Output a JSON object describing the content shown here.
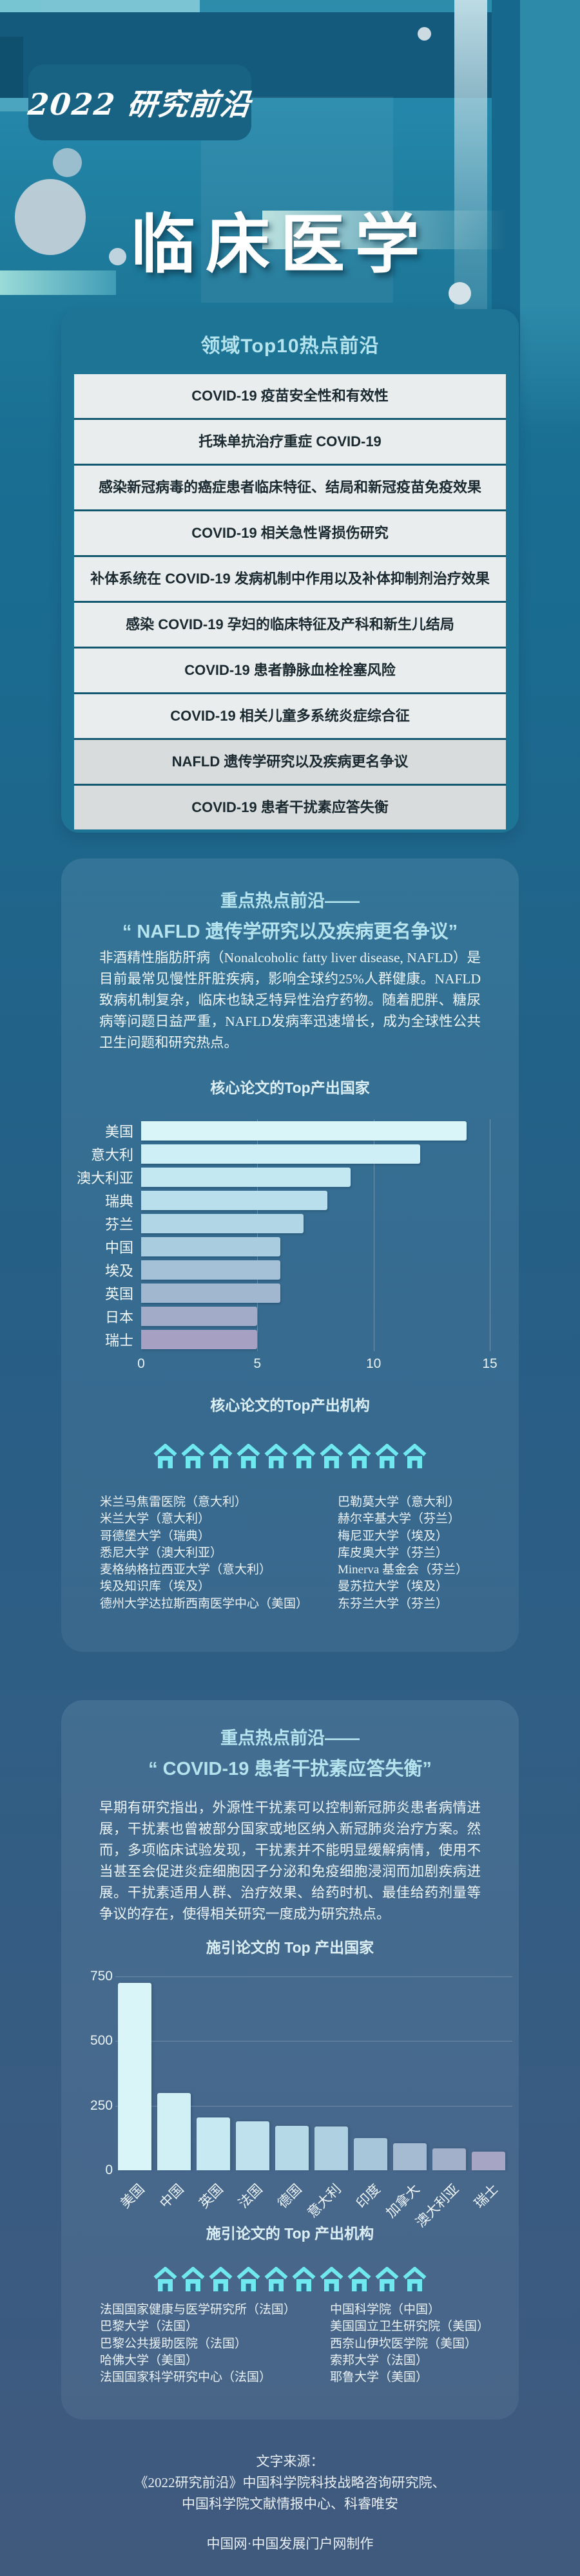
{
  "header": {
    "badge": "2022 研究前沿",
    "title": "临床医学"
  },
  "top10": {
    "title": "领域Top10热点前沿",
    "highlight_from": 8,
    "items": [
      "COVID-19 疫苗安全性和有效性",
      "托珠单抗治疗重症 COVID-19",
      "感染新冠病毒的癌症患者临床特征、结局和新冠疫苗免疫效果",
      "COVID-19 相关急性肾损伤研究",
      "补体系统在 COVID-19 发病机制中作用以及补体抑制剂治疗效果",
      "感染 COVID-19 孕妇的临床特征及产科和新生儿结局",
      "COVID-19 患者静脉血栓栓塞风险",
      "COVID-19 相关儿童多系统炎症综合征",
      "NAFLD 遗传学研究以及疾病更名争议",
      "COVID-19 患者干扰素应答失衡"
    ]
  },
  "sections": [
    {
      "heading_prefix": "重点热点前沿——",
      "heading": "“ NAFLD 遗传学研究以及疾病更名争议”",
      "paragraph": "非酒精性脂肪肝病（Nonalcoholic fatty liver disease, NAFLD）是目前最常见慢性肝脏疾病，影响全球约25%人群健康。NAFLD致病机制复杂，临床也缺乏特异性治疗药物。随着肥胖、糖尿病等问题日益严重，NAFLD发病率迅速增长，成为全球性公共卫生问题和研究热点。",
      "chart_title": "核心论文的Top产出国家",
      "inst_title": "核心论文的Top产出机构",
      "house_count": 10,
      "institutions_left": [
        "米兰马焦雷医院（意大利）",
        "米兰大学（意大利）",
        "哥德堡大学（瑞典）",
        "悉尼大学（澳大利亚）",
        "麦格纳格拉西亚大学（意大利）",
        "埃及知识库（埃及）",
        "德州大学达拉斯西南医学中心（美国）"
      ],
      "institutions_right": [
        "巴勒莫大学（意大利）",
        "赫尔辛基大学（芬兰）",
        "梅尼亚大学（埃及）",
        "库皮奥大学（芬兰）",
        "Minerva 基金会（芬兰）",
        "曼苏拉大学（埃及）",
        "东芬兰大学（芬兰）"
      ]
    },
    {
      "heading_prefix": "重点热点前沿——",
      "heading": "“ COVID-19 患者干扰素应答失衡”",
      "paragraph": "早期有研究指出，外源性干扰素可以控制新冠肺炎患者病情进展，干扰素也曾被部分国家或地区纳入新冠肺炎治疗方案。然而，多项临床试验发现，干扰素并不能明显缓解病情，使用不当甚至会促进炎症细胞因子分泌和免疫细胞浸润而加剧疾病进展。干扰素适用人群、治疗效果、给药时机、最佳给药剂量等争议的存在，使得相关研究一度成为研究热点。",
      "chart_title": "施引论文的 Top 产出国家",
      "inst_title": "施引论文的 Top 产出机构",
      "house_count": 10,
      "institutions_left": [
        "法国国家健康与医学研究所（法国）",
        "巴黎大学（法国）",
        "巴黎公共援助医院（法国）",
        "哈佛大学（美国）",
        "法国国家科学研究中心（法国）"
      ],
      "institutions_right": [
        "中国科学院（中国）",
        "美国国立卫生研究院（美国）",
        "西奈山伊坎医学院（美国）",
        "索邦大学（法国）",
        "耶鲁大学（美国）"
      ]
    }
  ],
  "chart_data": [
    {
      "type": "bar",
      "orientation": "horizontal",
      "title": "核心论文的Top产出国家",
      "categories": [
        "美国",
        "意大利",
        "澳大利亚",
        "瑞典",
        "芬兰",
        "中国",
        "埃及",
        "英国",
        "日本",
        "瑞士"
      ],
      "values": [
        14,
        12,
        9,
        8,
        7,
        6,
        6,
        6,
        5,
        5
      ],
      "xlabel": "",
      "ylabel": "",
      "xlim": [
        0,
        15
      ],
      "xticks": [
        0,
        5,
        10,
        15
      ],
      "grid": true,
      "legend": false,
      "bar_colors": [
        "#d9f5f8",
        "#ceeff6",
        "#c4e8f2",
        "#badfec",
        "#b1d6e6",
        "#a9ccdf",
        "#a4c1d7",
        "#a1b6cf",
        "#a2abc8",
        "#a6a1c2"
      ]
    },
    {
      "type": "bar",
      "orientation": "vertical",
      "title": "施引论文的 Top 产出国家",
      "categories": [
        "美国",
        "中国",
        "英国",
        "法国",
        "德国",
        "意大利",
        "印度",
        "加拿大",
        "澳大利亚",
        "瑞士"
      ],
      "values": [
        725,
        300,
        205,
        190,
        172,
        170,
        125,
        105,
        85,
        72
      ],
      "xlabel": "",
      "ylabel": "",
      "ylim": [
        0,
        750
      ],
      "yticks": [
        0,
        250,
        500,
        750
      ],
      "grid": true,
      "legend": false,
      "bar_colors": [
        "#d9f5f8",
        "#d0f0f6",
        "#c7e9f2",
        "#bee1ed",
        "#b5d9e7",
        "#aed0e1",
        "#a8c6d9",
        "#a4bbd2",
        "#a3b0ca",
        "#a6a5c3"
      ]
    }
  ],
  "footer": {
    "lines": [
      "文字来源：",
      "《2022研究前沿》中国科学院科技战略咨询研究院、",
      "中国科学院文献情报中心、科睿唯安"
    ],
    "credit": "中国网·中国发展门户网制作"
  },
  "colors": {
    "accent_cyan": "#6fe9ef",
    "house_door": "#2f6a8d",
    "title_cyan": "#b5e4ef",
    "card_teal": "#1e7495",
    "row_light": "#e9eded",
    "row_highlight": "#d8dcdc",
    "row_divider": "#11576f"
  }
}
